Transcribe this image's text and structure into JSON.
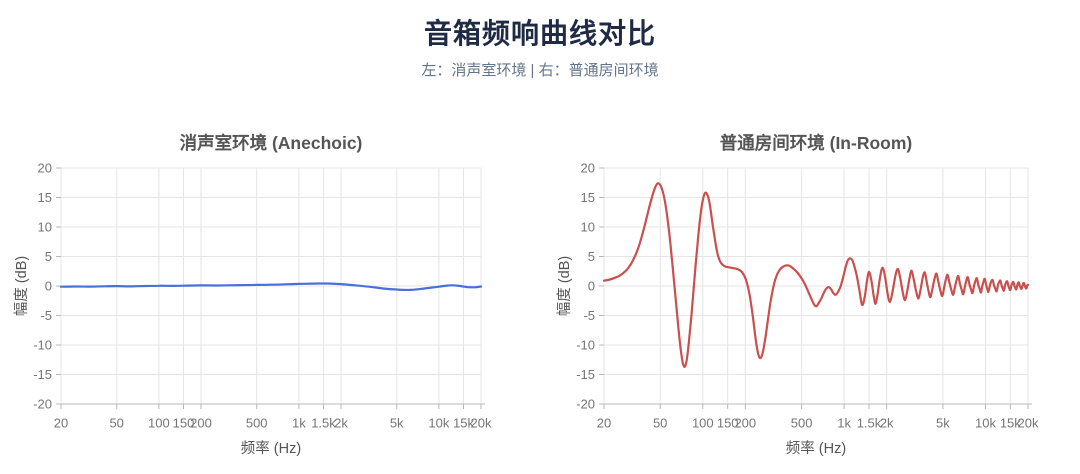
{
  "header": {
    "title": "音箱频响曲线对比",
    "subtitle": "左：消声室环境 | 右：普通房间环境"
  },
  "colors": {
    "title": "#1f2a44",
    "subtitle": "#64748b",
    "chart_title": "#555555",
    "axis_label": "#555555",
    "tick_label": "#757575",
    "grid": "#e5e5e5",
    "axis_line": "#b8b8b8",
    "tick_mark": "#b8b8b8",
    "anechoic_line": "#4a6fdb",
    "inroom_line": "#c9504e"
  },
  "axes": {
    "xlabel": "频率 (Hz)",
    "ylabel": "幅度 (dB)",
    "xscale": "log",
    "xlim": [
      20,
      20000
    ],
    "ylim": [
      -20,
      20
    ],
    "grid": true,
    "x_ticks": [
      {
        "f": 20,
        "label": "20"
      },
      {
        "f": 50,
        "label": "50"
      },
      {
        "f": 100,
        "label": "100"
      },
      {
        "f": 150,
        "label": "150"
      },
      {
        "f": 200,
        "label": "200"
      },
      {
        "f": 500,
        "label": "500"
      },
      {
        "f": 1000,
        "label": "1k"
      },
      {
        "f": 1500,
        "label": "1.5k"
      },
      {
        "f": 2000,
        "label": "2k"
      },
      {
        "f": 5000,
        "label": "5k"
      },
      {
        "f": 10000,
        "label": "10k"
      },
      {
        "f": 15000,
        "label": "15k"
      },
      {
        "f": 20000,
        "label": "20k"
      }
    ],
    "y_ticks": [
      20,
      15,
      10,
      5,
      0,
      -5,
      -10,
      -15,
      -20
    ]
  },
  "chart_data": [
    {
      "type": "line",
      "title": "消声室环境 (Anechoic)",
      "xlabel": "频率 (Hz)",
      "ylabel": "幅度 (dB)",
      "xscale": "log",
      "xlim": [
        20,
        20000
      ],
      "ylim": [
        -20,
        20
      ],
      "legend": "none",
      "line_color_key": "anechoic_line",
      "series": [
        {
          "name": "anechoic-response",
          "points": [
            [
              20,
              -0.12
            ],
            [
              25,
              -0.08
            ],
            [
              32,
              -0.1
            ],
            [
              40,
              -0.05
            ],
            [
              50,
              -0.02
            ],
            [
              63,
              -0.06
            ],
            [
              80,
              0.0
            ],
            [
              100,
              0.04
            ],
            [
              125,
              0.02
            ],
            [
              160,
              0.06
            ],
            [
              200,
              0.1
            ],
            [
              250,
              0.08
            ],
            [
              315,
              0.12
            ],
            [
              400,
              0.15
            ],
            [
              500,
              0.18
            ],
            [
              630,
              0.22
            ],
            [
              800,
              0.28
            ],
            [
              1000,
              0.35
            ],
            [
              1250,
              0.4
            ],
            [
              1600,
              0.42
            ],
            [
              2000,
              0.32
            ],
            [
              2500,
              0.12
            ],
            [
              3150,
              -0.12
            ],
            [
              4000,
              -0.42
            ],
            [
              5000,
              -0.6
            ],
            [
              6300,
              -0.66
            ],
            [
              8000,
              -0.4
            ],
            [
              10000,
              -0.12
            ],
            [
              11000,
              0.02
            ],
            [
              12500,
              0.12
            ],
            [
              14000,
              0.02
            ],
            [
              16000,
              -0.18
            ],
            [
              18000,
              -0.22
            ],
            [
              20000,
              -0.08
            ]
          ]
        }
      ]
    },
    {
      "type": "line",
      "title": "普通房间环境 (In-Room)",
      "xlabel": "频率 (Hz)",
      "ylabel": "幅度 (dB)",
      "xscale": "log",
      "xlim": [
        20,
        20000
      ],
      "ylim": [
        -20,
        20
      ],
      "legend": "none",
      "line_color_key": "inroom_line",
      "series": [
        {
          "name": "inroom-response",
          "points": [
            [
              20,
              0.9
            ],
            [
              22,
              1.1
            ],
            [
              24,
              1.4
            ],
            [
              26,
              1.8
            ],
            [
              28,
              2.4
            ],
            [
              30,
              3.2
            ],
            [
              32,
              4.3
            ],
            [
              34,
              5.7
            ],
            [
              36,
              7.4
            ],
            [
              38,
              9.4
            ],
            [
              40,
              11.5
            ],
            [
              42,
              13.5
            ],
            [
              44,
              15.3
            ],
            [
              46,
              16.7
            ],
            [
              48,
              17.4
            ],
            [
              50,
              17.1
            ],
            [
              52,
              16.1
            ],
            [
              54,
              14.3
            ],
            [
              56,
              11.8
            ],
            [
              58,
              8.8
            ],
            [
              60,
              5.4
            ],
            [
              62,
              1.9
            ],
            [
              64,
              -1.7
            ],
            [
              66,
              -5.1
            ],
            [
              68,
              -8.3
            ],
            [
              70,
              -11.0
            ],
            [
              72,
              -12.9
            ],
            [
              74,
              -13.7
            ],
            [
              76,
              -13.2
            ],
            [
              78,
              -11.6
            ],
            [
              80,
              -9.1
            ],
            [
              83,
              -5.1
            ],
            [
              86,
              -0.8
            ],
            [
              89,
              3.5
            ],
            [
              92,
              7.4
            ],
            [
              95,
              10.7
            ],
            [
              98,
              13.3
            ],
            [
              101,
              15.0
            ],
            [
              104,
              15.8
            ],
            [
              107,
              15.6
            ],
            [
              110,
              14.8
            ],
            [
              113,
              13.3
            ],
            [
              116,
              11.3
            ],
            [
              120,
              8.9
            ],
            [
              124,
              6.8
            ],
            [
              128,
              5.2
            ],
            [
              133,
              4.1
            ],
            [
              138,
              3.6
            ],
            [
              144,
              3.3
            ],
            [
              150,
              3.2
            ],
            [
              158,
              3.1
            ],
            [
              166,
              3.0
            ],
            [
              174,
              2.9
            ],
            [
              182,
              2.7
            ],
            [
              190,
              2.3
            ],
            [
              198,
              1.6
            ],
            [
              206,
              0.4
            ],
            [
              214,
              -1.4
            ],
            [
              222,
              -3.8
            ],
            [
              230,
              -6.6
            ],
            [
              238,
              -9.4
            ],
            [
              246,
              -11.4
            ],
            [
              254,
              -12.2
            ],
            [
              262,
              -11.8
            ],
            [
              270,
              -10.4
            ],
            [
              280,
              -8.1
            ],
            [
              290,
              -5.5
            ],
            [
              300,
              -3.0
            ],
            [
              312,
              -0.8
            ],
            [
              324,
              0.9
            ],
            [
              338,
              2.1
            ],
            [
              354,
              2.9
            ],
            [
              372,
              3.3
            ],
            [
              392,
              3.5
            ],
            [
              412,
              3.4
            ],
            [
              434,
              3.0
            ],
            [
              458,
              2.5
            ],
            [
              484,
              1.8
            ],
            [
              512,
              0.9
            ],
            [
              540,
              -0.2
            ],
            [
              570,
              -1.5
            ],
            [
              600,
              -2.7
            ],
            [
              620,
              -3.3
            ],
            [
              640,
              -3.4
            ],
            [
              660,
              -2.9
            ],
            [
              690,
              -2.1
            ],
            [
              720,
              -1.1
            ],
            [
              750,
              -0.4
            ],
            [
              780,
              -0.2
            ],
            [
              810,
              -0.6
            ],
            [
              840,
              -1.2
            ],
            [
              870,
              -1.5
            ],
            [
              900,
              -1.1
            ],
            [
              940,
              -0.2
            ],
            [
              980,
              1.3
            ],
            [
              1020,
              3.0
            ],
            [
              1060,
              4.3
            ],
            [
              1100,
              4.7
            ],
            [
              1140,
              4.4
            ],
            [
              1180,
              3.4
            ],
            [
              1230,
              1.7
            ],
            [
              1280,
              -0.6
            ],
            [
              1340,
              -3.2
            ],
            [
              1400,
              -1.8
            ],
            [
              1450,
              0.8
            ],
            [
              1500,
              2.4
            ],
            [
              1560,
              0.9
            ],
            [
              1620,
              -1.7
            ],
            [
              1670,
              -3.0
            ],
            [
              1730,
              -1.2
            ],
            [
              1800,
              1.6
            ],
            [
              1870,
              3.1
            ],
            [
              1950,
              1.5
            ],
            [
              2030,
              -1.3
            ],
            [
              2110,
              -2.7
            ],
            [
              2200,
              -1.0
            ],
            [
              2300,
              1.6
            ],
            [
              2400,
              2.9
            ],
            [
              2500,
              1.2
            ],
            [
              2600,
              -1.1
            ],
            [
              2700,
              -2.4
            ],
            [
              2800,
              -0.8
            ],
            [
              2900,
              1.3
            ],
            [
              3000,
              2.6
            ],
            [
              3120,
              0.9
            ],
            [
              3240,
              -1.0
            ],
            [
              3360,
              -2.1
            ],
            [
              3480,
              -0.5
            ],
            [
              3600,
              1.4
            ],
            [
              3720,
              2.3
            ],
            [
              3840,
              0.7
            ],
            [
              3960,
              -0.9
            ],
            [
              4080,
              -1.9
            ],
            [
              4220,
              -0.4
            ],
            [
              4360,
              1.2
            ],
            [
              4500,
              2.1
            ],
            [
              4650,
              0.6
            ],
            [
              4800,
              -0.8
            ],
            [
              4950,
              -1.7
            ],
            [
              5100,
              -0.3
            ],
            [
              5250,
              1.1
            ],
            [
              5400,
              1.9
            ],
            [
              5570,
              0.5
            ],
            [
              5740,
              -0.7
            ],
            [
              5910,
              -1.5
            ],
            [
              6080,
              -0.2
            ],
            [
              6250,
              1.0
            ],
            [
              6420,
              1.7
            ],
            [
              6600,
              0.4
            ],
            [
              6780,
              -0.6
            ],
            [
              6960,
              -1.4
            ],
            [
              7140,
              -0.2
            ],
            [
              7320,
              0.9
            ],
            [
              7500,
              1.5
            ],
            [
              7700,
              0.3
            ],
            [
              7900,
              -0.6
            ],
            [
              8100,
              -1.2
            ],
            [
              8300,
              0.0
            ],
            [
              8500,
              0.9
            ],
            [
              8700,
              1.3
            ],
            [
              8900,
              0.2
            ],
            [
              9100,
              -0.5
            ],
            [
              9300,
              -1.1
            ],
            [
              9500,
              0.0
            ],
            [
              9700,
              0.8
            ],
            [
              9900,
              1.2
            ],
            [
              10100,
              0.2
            ],
            [
              10300,
              -0.5
            ],
            [
              10500,
              -1.0
            ],
            [
              10750,
              0.1
            ],
            [
              11000,
              0.8
            ],
            [
              11250,
              1.0
            ],
            [
              11500,
              0.1
            ],
            [
              11750,
              -0.5
            ],
            [
              12000,
              -0.9
            ],
            [
              12250,
              0.1
            ],
            [
              12500,
              0.7
            ],
            [
              12750,
              0.9
            ],
            [
              13000,
              0.1
            ],
            [
              13250,
              -0.4
            ],
            [
              13500,
              -0.8
            ],
            [
              13750,
              0.1
            ],
            [
              14000,
              0.6
            ],
            [
              14250,
              0.8
            ],
            [
              14500,
              0.1
            ],
            [
              14750,
              -0.4
            ],
            [
              15000,
              -0.7
            ],
            [
              15250,
              0.1
            ],
            [
              15500,
              0.5
            ],
            [
              15750,
              0.7
            ],
            [
              16000,
              0.1
            ],
            [
              16250,
              -0.3
            ],
            [
              16500,
              -0.6
            ],
            [
              16750,
              0.0
            ],
            [
              17000,
              0.5
            ],
            [
              17250,
              0.6
            ],
            [
              17500,
              0.0
            ],
            [
              17750,
              -0.3
            ],
            [
              18000,
              -0.5
            ],
            [
              18250,
              0.0
            ],
            [
              18500,
              0.4
            ],
            [
              18750,
              0.5
            ],
            [
              19000,
              0.0
            ],
            [
              19250,
              -0.3
            ],
            [
              19500,
              -0.4
            ],
            [
              19750,
              0.1
            ],
            [
              20000,
              0.2
            ]
          ]
        }
      ]
    }
  ]
}
